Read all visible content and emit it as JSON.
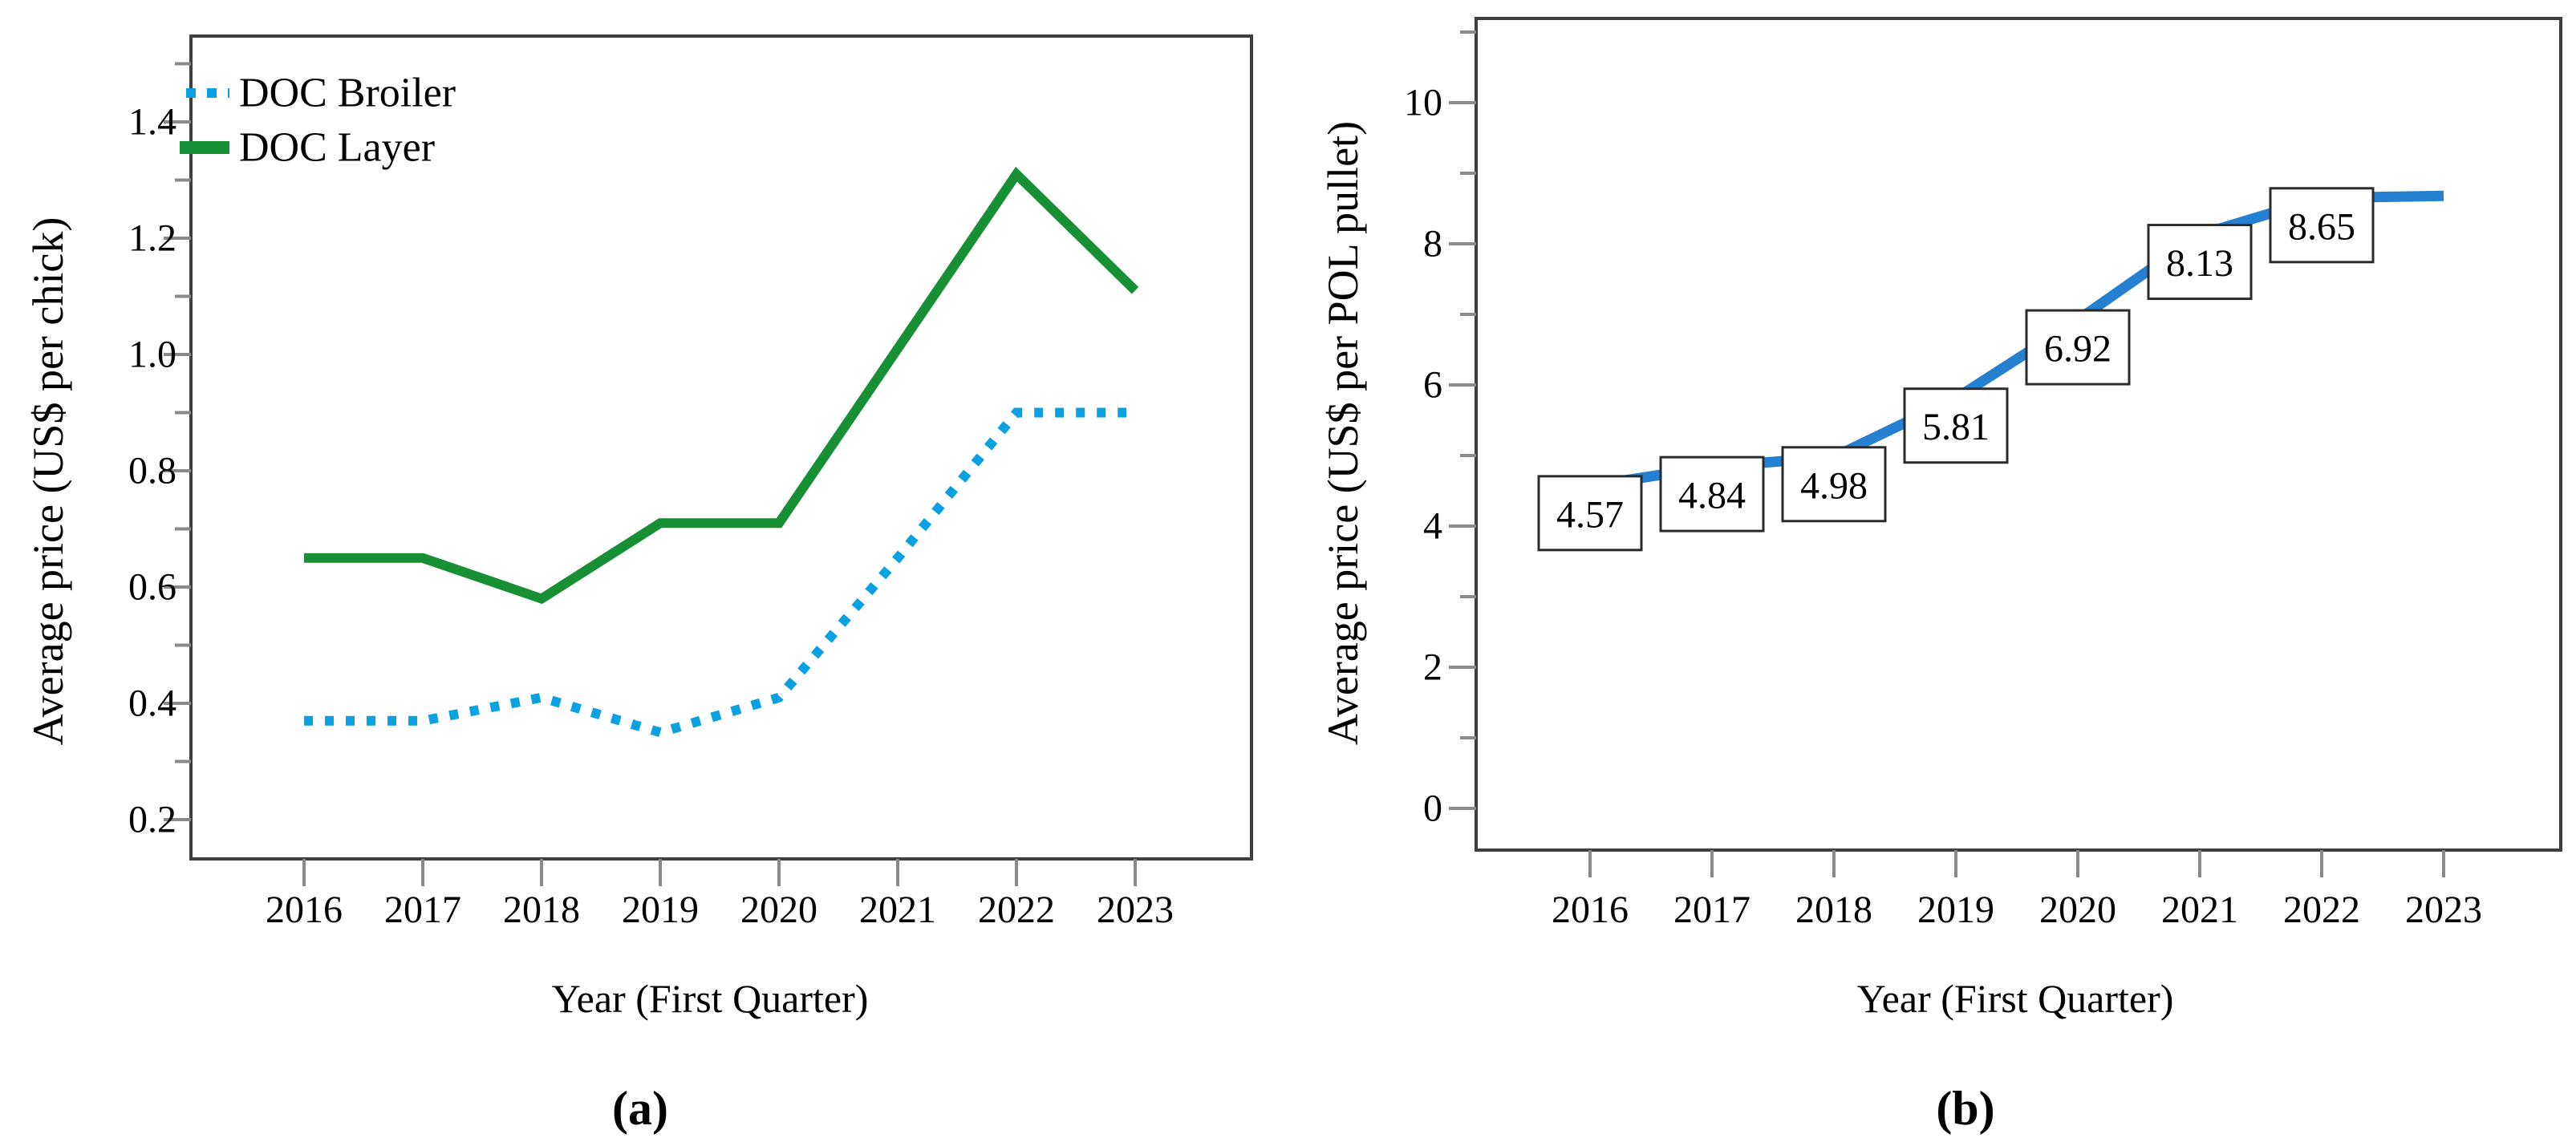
{
  "figure": {
    "caption_a": "(a)",
    "caption_b": "(b)"
  },
  "chart_data": [
    {
      "type": "line",
      "panel": "a",
      "caption": "(a)",
      "xlabel": "Year (First Quarter)",
      "ylabel": "Average price (US$ per chick)",
      "categories": [
        "2016",
        "2017",
        "2018",
        "2019",
        "2020",
        "2021",
        "2022",
        "2023"
      ],
      "series": [
        {
          "name": "DOC Broiler",
          "line_style": "dotted",
          "color": "#0aa1e2",
          "values": [
            0.37,
            0.37,
            0.41,
            0.35,
            0.41,
            0.65,
            0.9,
            0.9
          ]
        },
        {
          "name": "DOC Layer",
          "line_style": "solid",
          "color": "#168f35",
          "values": [
            0.65,
            0.65,
            0.58,
            0.71,
            0.71,
            1.01,
            1.31,
            1.11
          ]
        }
      ],
      "ylim": [
        0.13,
        1.55
      ],
      "yticks_major": [
        0.2,
        0.4,
        0.6,
        0.8,
        1.0,
        1.2,
        1.4
      ],
      "yticks_minor": [
        0.3,
        0.5,
        0.7,
        0.9,
        1.1,
        1.3,
        1.5
      ],
      "y_tick_decimals": 1,
      "grid": false,
      "legend_position": "top-left"
    },
    {
      "type": "line",
      "panel": "b",
      "caption": "(b)",
      "xlabel": "Year (First Quarter)",
      "ylabel": "Average price (US$ per POL pullet)",
      "categories": [
        "2016",
        "2017",
        "2018",
        "2019",
        "2020",
        "2021",
        "2022",
        "2023"
      ],
      "series": [
        {
          "name": "POL pullet",
          "line_style": "solid",
          "color": "#2580d2",
          "values": [
            4.57,
            4.84,
            4.98,
            5.81,
            6.92,
            8.13,
            8.65,
            8.68
          ],
          "data_labels": [
            "4.57",
            "4.84",
            "4.98",
            "5.81",
            "6.92",
            "8.13",
            "8.65",
            null
          ]
        }
      ],
      "ylim": [
        -0.6,
        11.2
      ],
      "yticks_major": [
        0,
        2,
        4,
        6,
        8,
        10
      ],
      "yticks_minor": [
        1,
        3,
        5,
        7,
        9,
        11
      ],
      "y_tick_decimals": 0,
      "grid": false,
      "legend_position": "none"
    }
  ]
}
